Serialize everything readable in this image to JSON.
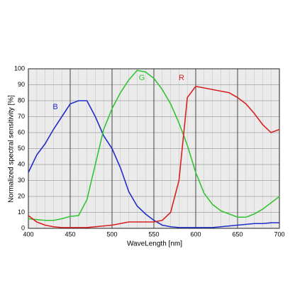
{
  "chart_data": {
    "type": "line",
    "x_label": "WaveLength [nm]",
    "y_label": "Normalized spectral sensitivity [%]",
    "x": [
      400,
      410,
      420,
      430,
      440,
      450,
      460,
      470,
      480,
      490,
      500,
      510,
      520,
      530,
      540,
      550,
      560,
      570,
      580,
      590,
      600,
      610,
      620,
      630,
      640,
      650,
      660,
      670,
      680,
      690,
      700
    ],
    "series": [
      {
        "name": "B",
        "color": "#1f2fc8",
        "values": [
          35,
          46,
          53,
          62,
          70,
          78,
          80,
          80,
          70,
          58,
          50,
          38,
          23,
          14,
          9,
          5,
          2,
          1,
          0.5,
          0.5,
          0.5,
          0.5,
          0.5,
          1,
          1.5,
          2,
          2.5,
          3,
          3,
          3.5,
          3.5
        ]
      },
      {
        "name": "G",
        "color": "#33c433",
        "values": [
          6,
          5.5,
          5,
          5,
          6,
          7.5,
          8,
          18,
          40,
          62,
          75,
          85,
          93,
          99,
          98,
          94,
          87,
          78,
          66,
          52,
          35,
          22,
          15,
          11,
          9,
          7,
          7,
          9,
          12,
          16,
          20
        ]
      },
      {
        "name": "R",
        "color": "#d92020",
        "values": [
          8,
          4,
          2,
          1,
          0.5,
          0.5,
          0.5,
          0.5,
          1,
          1.5,
          2,
          3,
          4,
          4,
          4,
          4,
          5,
          10,
          30,
          82,
          89,
          88,
          87,
          86,
          85,
          82,
          78,
          72,
          65,
          60,
          62
        ]
      }
    ],
    "xlim": [
      400,
      700
    ],
    "xticks": [
      400,
      450,
      500,
      550,
      600,
      650,
      700
    ],
    "ylim": [
      0,
      100
    ],
    "yticks": [
      0,
      10,
      20,
      30,
      40,
      50,
      60,
      70,
      80,
      90,
      100
    ],
    "grid": true
  }
}
